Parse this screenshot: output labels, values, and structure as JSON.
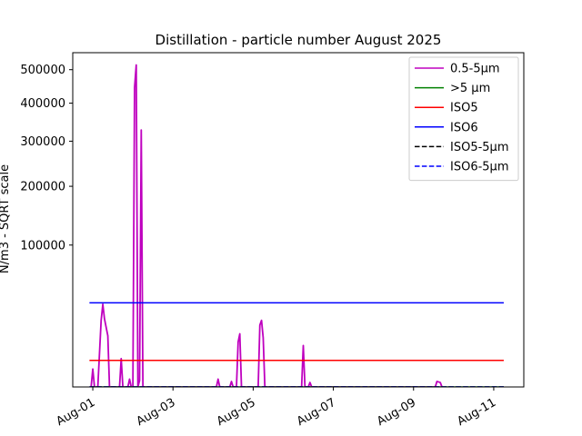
{
  "chart_data": {
    "type": "line",
    "title": "Distillation - particle number August 2025",
    "ylabel": "N/m3 - SQRT scale",
    "xlabel": "",
    "y_scale": "sqrt",
    "ylim": [
      0,
      555000
    ],
    "xlim": [
      "2025-07-31T12:00",
      "2025-08-11T18:00"
    ],
    "x_ticks": [
      "2025-08-01",
      "2025-08-03",
      "2025-08-05",
      "2025-08-07",
      "2025-08-09",
      "2025-08-11"
    ],
    "x_tick_labels": [
      "Aug-01",
      "Aug-03",
      "Aug-05",
      "Aug-07",
      "Aug-09",
      "Aug-11"
    ],
    "y_ticks": [
      100000,
      200000,
      300000,
      400000,
      500000
    ],
    "y_tick_labels": [
      "100000",
      "200000",
      "300000",
      "400000",
      "500000"
    ],
    "grid": false,
    "legend_position": "top-right",
    "series": [
      {
        "name": "0.5-5µm",
        "color": "#bf00bf",
        "style": "solid",
        "points": [
          [
            "2025-07-31T23:00",
            0
          ],
          [
            "2025-08-01T00:00",
            1600
          ],
          [
            "2025-08-01T01:00",
            0
          ],
          [
            "2025-08-01T03:00",
            0
          ],
          [
            "2025-08-01T05:00",
            22000
          ],
          [
            "2025-08-01T06:00",
            34000
          ],
          [
            "2025-08-01T07:00",
            23000
          ],
          [
            "2025-08-01T09:00",
            13000
          ],
          [
            "2025-08-01T10:00",
            0
          ],
          [
            "2025-08-01T16:00",
            0
          ],
          [
            "2025-08-01T17:00",
            4000
          ],
          [
            "2025-08-01T18:00",
            0
          ],
          [
            "2025-08-01T21:00",
            0
          ],
          [
            "2025-08-01T22:00",
            300
          ],
          [
            "2025-08-01T23:00",
            0
          ],
          [
            "2025-08-02T00:00",
            0
          ],
          [
            "2025-08-02T01:00",
            445000
          ],
          [
            "2025-08-02T02:00",
            515000
          ],
          [
            "2025-08-02T03:00",
            0
          ],
          [
            "2025-08-02T04:00",
            200
          ],
          [
            "2025-08-02T05:00",
            328000
          ],
          [
            "2025-08-02T06:00",
            0
          ],
          [
            "2025-08-04T02:00",
            0
          ],
          [
            "2025-08-04T03:00",
            300
          ],
          [
            "2025-08-04T04:00",
            0
          ],
          [
            "2025-08-04T10:00",
            0
          ],
          [
            "2025-08-04T11:00",
            150
          ],
          [
            "2025-08-04T12:00",
            0
          ],
          [
            "2025-08-04T14:00",
            0
          ],
          [
            "2025-08-04T15:00",
            10000
          ],
          [
            "2025-08-04T16:00",
            14000
          ],
          [
            "2025-08-04T17:00",
            0
          ],
          [
            "2025-08-05T03:00",
            0
          ],
          [
            "2025-08-05T04:00",
            19000
          ],
          [
            "2025-08-05T05:00",
            22000
          ],
          [
            "2025-08-05T06:00",
            12000
          ],
          [
            "2025-08-05T07:00",
            0
          ],
          [
            "2025-08-06T05:00",
            0
          ],
          [
            "2025-08-06T06:00",
            8500
          ],
          [
            "2025-08-06T07:00",
            0
          ],
          [
            "2025-08-06T09:00",
            0
          ],
          [
            "2025-08-06T10:00",
            100
          ],
          [
            "2025-08-06T11:00",
            0
          ],
          [
            "2025-08-09T13:00",
            0
          ],
          [
            "2025-08-09T14:00",
            150
          ],
          [
            "2025-08-09T16:00",
            100
          ],
          [
            "2025-08-09T17:00",
            0
          ]
        ]
      },
      {
        "name": ">5 µm",
        "color": "#008000",
        "style": "solid",
        "points": [
          [
            "2025-07-31T23:00",
            0
          ],
          [
            "2025-08-11T06:00",
            0
          ]
        ]
      },
      {
        "name": "ISO5",
        "color": "#ff0000",
        "style": "solid",
        "points": [
          [
            "2025-07-31T22:00",
            3520
          ],
          [
            "2025-08-11T06:00",
            3520
          ]
        ]
      },
      {
        "name": "ISO6",
        "color": "#0000ff",
        "style": "solid",
        "points": [
          [
            "2025-07-31T22:00",
            35200
          ],
          [
            "2025-08-11T06:00",
            35200
          ]
        ]
      },
      {
        "name": "ISO5-5µm",
        "color": "#000000",
        "style": "dashed",
        "points": [
          [
            "2025-07-31T22:00",
            0
          ],
          [
            "2025-08-11T06:00",
            0
          ]
        ]
      },
      {
        "name": "ISO6-5µm",
        "color": "#0000ff",
        "style": "dashed",
        "points": [
          [
            "2025-07-31T22:00",
            0
          ],
          [
            "2025-08-11T06:00",
            0
          ]
        ]
      }
    ]
  }
}
